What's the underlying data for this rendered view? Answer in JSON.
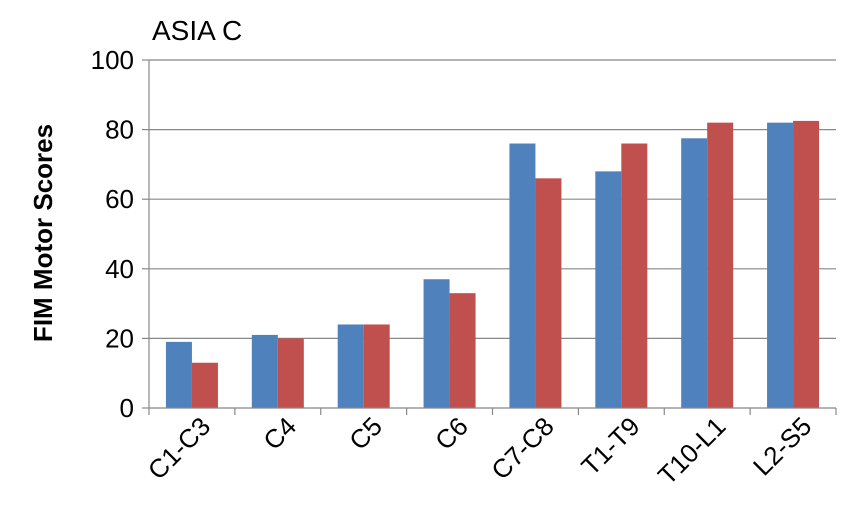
{
  "chart_data": {
    "type": "bar",
    "title": "ASIA C",
    "xlabel": "",
    "ylabel": "FIM Motor Scores",
    "ylim": [
      0,
      100
    ],
    "yticks": [
      0,
      20,
      40,
      60,
      80,
      100
    ],
    "grid": true,
    "legend": "none",
    "categories": [
      "C1-C3",
      "C4",
      "C5",
      "C6",
      "C7-C8",
      "T1-T9",
      "T10-L1",
      "L2-S5"
    ],
    "series": [
      {
        "color": "#4F81BD",
        "values": [
          19,
          21,
          24,
          37,
          76,
          68,
          77.5,
          82
        ]
      },
      {
        "color": "#C0504D",
        "values": [
          13,
          20,
          24,
          33,
          66,
          76,
          82,
          82.5
        ]
      }
    ]
  }
}
